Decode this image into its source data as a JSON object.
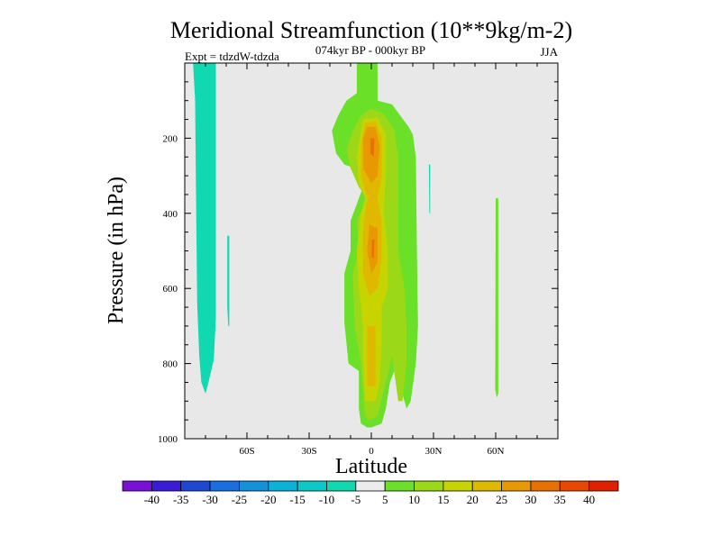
{
  "chart_data": {
    "type": "contour",
    "title": "Meridional Streamfunction (10**9kg/m-2)",
    "subtitle": "074kyr BP - 000kyr BP",
    "left_string": "Expt = tdzdW-tdzda",
    "right_string": "JJA",
    "xlabel": "Latitude",
    "ylabel": "Pressure (in hPa)",
    "xlim": [
      -90,
      90
    ],
    "ylim": [
      1000,
      0
    ],
    "y_reversed": true,
    "xticks": [
      {
        "value": -60,
        "label": "60S"
      },
      {
        "value": -30,
        "label": "30S"
      },
      {
        "value": 0,
        "label": "0"
      },
      {
        "value": 30,
        "label": "30N"
      },
      {
        "value": 60,
        "label": "60N"
      }
    ],
    "yticks": [
      {
        "value": 200,
        "label": "200"
      },
      {
        "value": 400,
        "label": "400"
      },
      {
        "value": 600,
        "label": "600"
      },
      {
        "value": 800,
        "label": "800"
      },
      {
        "value": 1000,
        "label": "1000"
      }
    ],
    "background_level": "-5 to 5",
    "levels": [
      -40,
      -35,
      -30,
      -25,
      -20,
      -15,
      -10,
      -5,
      5,
      10,
      15,
      20,
      25,
      30,
      35,
      40
    ],
    "colorbar_colors": [
      "#7a10d8",
      "#3a1bd8",
      "#1d48d4",
      "#1a6fe0",
      "#1292d8",
      "#0ab2d8",
      "#0dc8c8",
      "#10d8b0",
      "#ececec",
      "#6ae028",
      "#9ad818",
      "#c8d400",
      "#e0b800",
      "#e89800",
      "#e87000",
      "#e84800",
      "#e02000"
    ],
    "regions": [
      {
        "level": -10,
        "color": "#10d8b0",
        "points": [
          [
            -86,
            0
          ],
          [
            -75,
            0
          ],
          [
            -75,
            680
          ],
          [
            -76,
            790
          ],
          [
            -79,
            860
          ],
          [
            -80,
            880
          ],
          [
            -82,
            850
          ],
          [
            -83,
            780
          ],
          [
            -84,
            640
          ],
          [
            -84.5,
            400
          ],
          [
            -85,
            100
          ]
        ]
      },
      {
        "level": -10,
        "color": "#10d8b0",
        "points": [
          [
            -69.5,
            460
          ],
          [
            -68.5,
            460
          ],
          [
            -68.5,
            700
          ],
          [
            -69,
            700
          ],
          [
            -69.5,
            650
          ]
        ]
      },
      {
        "level": -10,
        "color": "#10d8b0",
        "points": [
          [
            27.8,
            270
          ],
          [
            28.4,
            270
          ],
          [
            28.4,
            400
          ],
          [
            28,
            400
          ]
        ]
      },
      {
        "level": 5,
        "color": "#6ae028",
        "points": [
          [
            -7,
            0
          ],
          [
            3,
            0
          ],
          [
            3,
            100
          ],
          [
            10,
            110
          ],
          [
            18,
            170
          ],
          [
            20,
            190
          ],
          [
            21.5,
            250
          ],
          [
            22,
            500
          ],
          [
            22.5,
            700
          ],
          [
            21.5,
            800
          ],
          [
            19,
            900
          ],
          [
            17,
            920
          ],
          [
            15,
            880
          ],
          [
            11,
            820
          ],
          [
            9,
            850
          ],
          [
            7,
            920
          ],
          [
            5,
            960
          ],
          [
            0,
            970
          ],
          [
            -2,
            970
          ],
          [
            -5,
            960
          ],
          [
            -6,
            920
          ],
          [
            -6,
            820
          ],
          [
            -11,
            800
          ],
          [
            -13,
            690
          ],
          [
            -13,
            560
          ],
          [
            -10,
            500
          ],
          [
            -10,
            420
          ],
          [
            -4,
            330
          ],
          [
            -8,
            280
          ],
          [
            -13,
            270
          ],
          [
            -17,
            240
          ],
          [
            -19,
            180
          ],
          [
            -16,
            140
          ],
          [
            -12,
            100
          ],
          [
            -7,
            80
          ]
        ]
      },
      {
        "level": 10,
        "color": "#9ad818",
        "points": [
          [
            -5,
            140
          ],
          [
            0,
            120
          ],
          [
            6,
            135
          ],
          [
            11,
            175
          ],
          [
            13,
            250
          ],
          [
            13,
            500
          ],
          [
            16,
            600
          ],
          [
            17,
            700
          ],
          [
            17,
            800
          ],
          [
            15,
            900
          ],
          [
            13,
            900
          ],
          [
            10,
            780
          ],
          [
            7,
            850
          ],
          [
            3,
            940
          ],
          [
            -1,
            950
          ],
          [
            -3,
            940
          ],
          [
            -5,
            800
          ],
          [
            -8,
            700
          ],
          [
            -9,
            560
          ],
          [
            -6,
            500
          ],
          [
            -7,
            420
          ],
          [
            -2,
            360
          ],
          [
            -6,
            330
          ],
          [
            -10,
            280
          ],
          [
            -12,
            230
          ],
          [
            -9,
            180
          ]
        ]
      },
      {
        "level": 15,
        "color": "#c8d400",
        "points": [
          [
            -4,
            150
          ],
          [
            3,
            145
          ],
          [
            7,
            190
          ],
          [
            7,
            300
          ],
          [
            6,
            400
          ],
          [
            8,
            500
          ],
          [
            8,
            600
          ],
          [
            5,
            650
          ],
          [
            5,
            750
          ],
          [
            4,
            850
          ],
          [
            2,
            900
          ],
          [
            -3,
            900
          ],
          [
            -4,
            800
          ],
          [
            -4,
            700
          ],
          [
            -6,
            600
          ],
          [
            -7,
            500
          ],
          [
            -5,
            400
          ],
          [
            -3,
            360
          ],
          [
            -6,
            320
          ],
          [
            -7,
            250
          ]
        ]
      },
      {
        "level": 20,
        "color": "#e0b800",
        "points": [
          [
            -3,
            160
          ],
          [
            2,
            155
          ],
          [
            5,
            200
          ],
          [
            5,
            300
          ],
          [
            3,
            360
          ],
          [
            5,
            420
          ],
          [
            5,
            520
          ],
          [
            3,
            600
          ],
          [
            -1,
            620
          ],
          [
            -4,
            560
          ],
          [
            -4,
            440
          ],
          [
            -2,
            360
          ],
          [
            -5,
            300
          ],
          [
            -5,
            220
          ]
        ]
      },
      {
        "level": 20,
        "color": "#e0b800",
        "points": [
          [
            -2,
            700
          ],
          [
            2,
            700
          ],
          [
            2,
            860
          ],
          [
            -2,
            860
          ]
        ]
      },
      {
        "level": 25,
        "color": "#e89800",
        "points": [
          [
            -2,
            170
          ],
          [
            2,
            170
          ],
          [
            4,
            220
          ],
          [
            3,
            300
          ],
          [
            0,
            320
          ],
          [
            -4,
            280
          ],
          [
            -4,
            200
          ]
        ]
      },
      {
        "level": 25,
        "color": "#e89800",
        "points": [
          [
            -1,
            430
          ],
          [
            3,
            440
          ],
          [
            3,
            530
          ],
          [
            0,
            560
          ],
          [
            -2,
            500
          ]
        ]
      },
      {
        "level": 30,
        "color": "#e87000",
        "points": [
          [
            -0.5,
            200
          ],
          [
            1.5,
            200
          ],
          [
            1.2,
            250
          ],
          [
            -0.5,
            240
          ]
        ]
      },
      {
        "level": 30,
        "color": "#e87000",
        "points": [
          [
            0.3,
            470
          ],
          [
            1.5,
            470
          ],
          [
            1.2,
            520
          ],
          [
            0.2,
            515
          ]
        ]
      },
      {
        "level": 5,
        "color": "#6ae028",
        "points": [
          [
            60,
            360
          ],
          [
            61.2,
            360
          ],
          [
            61.2,
            880
          ],
          [
            60.5,
            890
          ],
          [
            59.8,
            870
          ]
        ]
      }
    ]
  }
}
